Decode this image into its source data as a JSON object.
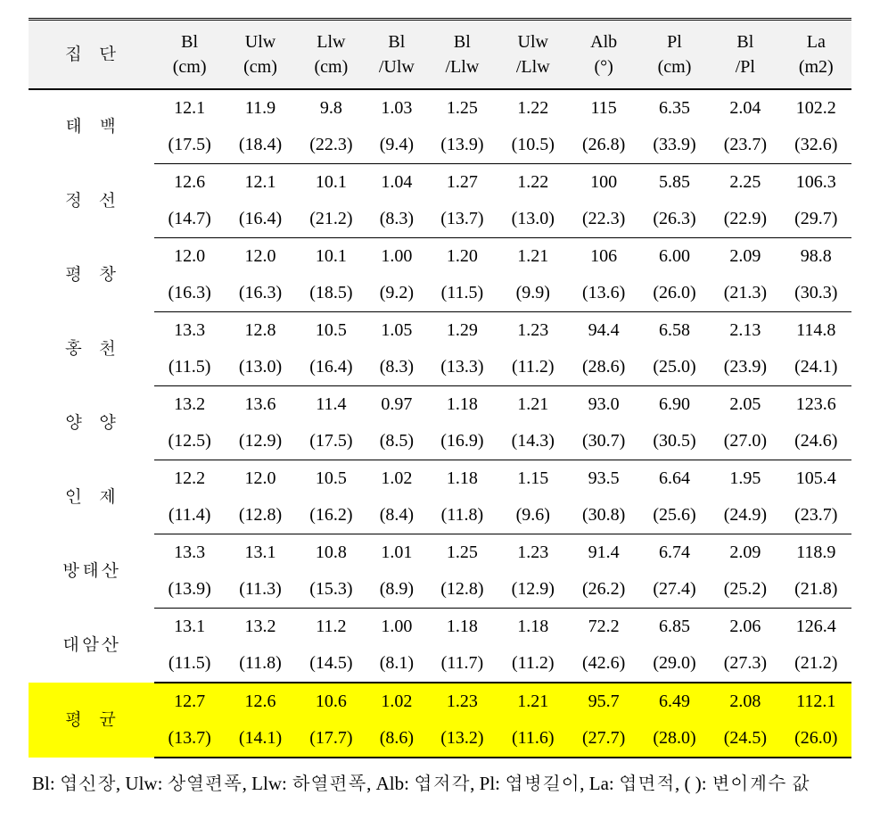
{
  "table": {
    "header": {
      "group": "집단",
      "columns": [
        {
          "l1": "Bl",
          "l2": "(cm)"
        },
        {
          "l1": "Ulw",
          "l2": "(cm)"
        },
        {
          "l1": "Llw",
          "l2": "(cm)"
        },
        {
          "l1": "Bl",
          "l2": "/Ulw"
        },
        {
          "l1": "Bl",
          "l2": "/Llw"
        },
        {
          "l1": "Ulw",
          "l2": "/Llw"
        },
        {
          "l1": "Alb",
          "l2": "(°)"
        },
        {
          "l1": "Pl",
          "l2": "(cm)"
        },
        {
          "l1": "Bl",
          "l2": "/Pl"
        },
        {
          "l1": "La",
          "l2": "(m2)"
        }
      ]
    },
    "rows": [
      {
        "name": "태백",
        "spacing": "wide",
        "v": [
          "12.1",
          "11.9",
          "9.8",
          "1.03",
          "1.25",
          "1.22",
          "115",
          "6.35",
          "2.04",
          "102.2"
        ],
        "cv": [
          "(17.5)",
          "(18.4)",
          "(22.3)",
          "(9.4)",
          "(13.9)",
          "(10.5)",
          "(26.8)",
          "(33.9)",
          "(23.7)",
          "(32.6)"
        ]
      },
      {
        "name": "정선",
        "spacing": "wide",
        "v": [
          "12.6",
          "12.1",
          "10.1",
          "1.04",
          "1.27",
          "1.22",
          "100",
          "5.85",
          "2.25",
          "106.3"
        ],
        "cv": [
          "(14.7)",
          "(16.4)",
          "(21.2)",
          "(8.3)",
          "(13.7)",
          "(13.0)",
          "(22.3)",
          "(26.3)",
          "(22.9)",
          "(29.7)"
        ]
      },
      {
        "name": "평창",
        "spacing": "wide",
        "v": [
          "12.0",
          "12.0",
          "10.1",
          "1.00",
          "1.20",
          "1.21",
          "106",
          "6.00",
          "2.09",
          "98.8"
        ],
        "cv": [
          "(16.3)",
          "(16.3)",
          "(18.5)",
          "(9.2)",
          "(11.5)",
          "(9.9)",
          "(13.6)",
          "(26.0)",
          "(21.3)",
          "(30.3)"
        ]
      },
      {
        "name": "홍천",
        "spacing": "wide",
        "v": [
          "13.3",
          "12.8",
          "10.5",
          "1.05",
          "1.29",
          "1.23",
          "94.4",
          "6.58",
          "2.13",
          "114.8"
        ],
        "cv": [
          "(11.5)",
          "(13.0)",
          "(16.4)",
          "(8.3)",
          "(13.3)",
          "(11.2)",
          "(28.6)",
          "(25.0)",
          "(23.9)",
          "(24.1)"
        ]
      },
      {
        "name": "양양",
        "spacing": "wide",
        "v": [
          "13.2",
          "13.6",
          "11.4",
          "0.97",
          "1.18",
          "1.21",
          "93.0",
          "6.90",
          "2.05",
          "123.6"
        ],
        "cv": [
          "(12.5)",
          "(12.9)",
          "(17.5)",
          "(8.5)",
          "(16.9)",
          "(14.3)",
          "(30.7)",
          "(30.5)",
          "(27.0)",
          "(24.6)"
        ]
      },
      {
        "name": "인제",
        "spacing": "wide",
        "v": [
          "12.2",
          "12.0",
          "10.5",
          "1.02",
          "1.18",
          "1.15",
          "93.5",
          "6.64",
          "1.95",
          "105.4"
        ],
        "cv": [
          "(11.4)",
          "(12.8)",
          "(16.2)",
          "(8.4)",
          "(11.8)",
          "(9.6)",
          "(30.8)",
          "(25.6)",
          "(24.9)",
          "(23.7)"
        ]
      },
      {
        "name": "방태산",
        "spacing": "tight",
        "v": [
          "13.3",
          "13.1",
          "10.8",
          "1.01",
          "1.25",
          "1.23",
          "91.4",
          "6.74",
          "2.09",
          "118.9"
        ],
        "cv": [
          "(13.9)",
          "(11.3)",
          "(15.3)",
          "(8.9)",
          "(12.8)",
          "(12.9)",
          "(26.2)",
          "(27.4)",
          "(25.2)",
          "(21.8)"
        ]
      },
      {
        "name": "대암산",
        "spacing": "tight",
        "v": [
          "13.1",
          "13.2",
          "11.2",
          "1.00",
          "1.18",
          "1.18",
          "72.2",
          "6.85",
          "2.06",
          "126.4"
        ],
        "cv": [
          "(11.5)",
          "(11.8)",
          "(14.5)",
          "(8.1)",
          "(11.7)",
          "(11.2)",
          "(42.6)",
          "(29.0)",
          "(27.3)",
          "(21.2)"
        ]
      }
    ],
    "average": {
      "name": "평균",
      "spacing": "wide",
      "v": [
        "12.7",
        "12.6",
        "10.6",
        "1.02",
        "1.23",
        "1.21",
        "95.7",
        "6.49",
        "2.08",
        "112.1"
      ],
      "cv": [
        "(13.7)",
        "(14.1)",
        "(17.7)",
        "(8.6)",
        "(13.2)",
        "(11.6)",
        "(27.7)",
        "(28.0)",
        "(24.5)",
        "(26.0)"
      ]
    }
  },
  "footnote": "Bl: 엽신장, Ulw: 상열편폭, Llw: 하열편폭, Alb: 엽저각, Pl: 엽병길이, La: 엽면적, ( ): 변이계수 값",
  "styling": {
    "highlight_color": "#ffff00",
    "header_bg": "#f2f2f2",
    "border_color": "#000000",
    "font_size_table": 20,
    "font_size_footnote": 21
  }
}
